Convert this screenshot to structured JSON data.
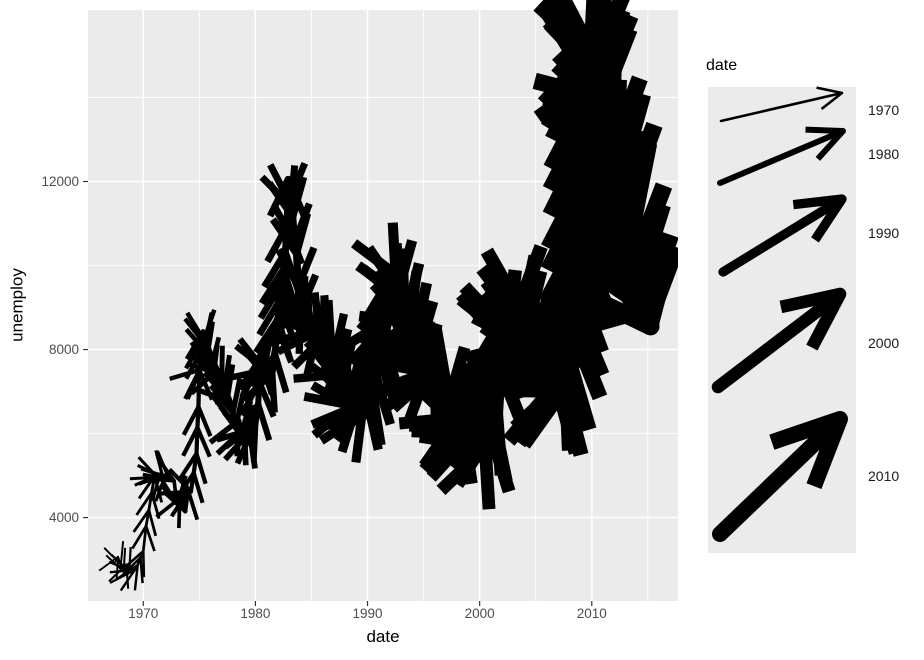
{
  "chart_data": {
    "type": "line",
    "style": "arrow-path: each segment of the line is drawn with an open V arrowhead; stroke width and arrowhead length increase with date",
    "title": "",
    "xlabel": "date",
    "ylabel": "unemploy",
    "x_ticks": [
      1970,
      1980,
      1990,
      2000,
      2010
    ],
    "x_minor_ticks": [
      1975,
      1985,
      1995,
      2005,
      2015
    ],
    "y_ticks": [
      4000,
      8000,
      12000
    ],
    "y_minor_ticks": [
      6000,
      10000,
      14000
    ],
    "xlim": [
      1965.07,
      2017.69
    ],
    "ylim": [
      2014,
      16083
    ],
    "grid": "white major and minor gridlines on grey panel",
    "legend_position": "right",
    "series": [
      {
        "name": "unemploy",
        "points": [
          [
            1967.5,
            2944
          ],
          [
            1967.75,
            3066
          ],
          [
            1968,
            2878
          ],
          [
            1968.25,
            2709
          ],
          [
            1968.5,
            2883
          ],
          [
            1968.75,
            2715
          ],
          [
            1969,
            2718
          ],
          [
            1969.25,
            2758
          ],
          [
            1969.5,
            2868
          ],
          [
            1969.75,
            3049
          ],
          [
            1970,
            3201
          ],
          [
            1970.25,
            3797
          ],
          [
            1970.5,
            4175
          ],
          [
            1970.75,
            4591
          ],
          [
            1971,
            4986
          ],
          [
            1971.25,
            4959
          ],
          [
            1971.5,
            5035
          ],
          [
            1971.75,
            4954
          ],
          [
            1972,
            5019
          ],
          [
            1972.25,
            4959
          ],
          [
            1972.5,
            4913
          ],
          [
            1972.75,
            4875
          ],
          [
            1973,
            4326
          ],
          [
            1973.25,
            4459
          ],
          [
            1973.5,
            4305
          ],
          [
            1973.75,
            4144
          ],
          [
            1974,
            4644
          ],
          [
            1974.25,
            4618
          ],
          [
            1974.5,
            5063
          ],
          [
            1974.75,
            5523
          ],
          [
            1974.83,
            6140
          ],
          [
            1974.92,
            6636
          ],
          [
            1975,
            7501
          ],
          [
            1975.08,
            7520
          ],
          [
            1975.17,
            7978
          ],
          [
            1975.25,
            8210
          ],
          [
            1975.33,
            8433
          ],
          [
            1975.42,
            8220
          ],
          [
            1975.5,
            8127
          ],
          [
            1975.75,
            7897
          ],
          [
            1976,
            7534
          ],
          [
            1976.25,
            7330
          ],
          [
            1976.5,
            7490
          ],
          [
            1976.75,
            7430
          ],
          [
            1977,
            7280
          ],
          [
            1977.25,
            7059
          ],
          [
            1977.5,
            6829
          ],
          [
            1977.75,
            6763
          ],
          [
            1978,
            6489
          ],
          [
            1978.25,
            6180
          ],
          [
            1978.5,
            6309
          ],
          [
            1978.75,
            5947
          ],
          [
            1979,
            6109
          ],
          [
            1979.25,
            5819
          ],
          [
            1979.5,
            6039
          ],
          [
            1979.75,
            6097
          ],
          [
            1980,
            6225
          ],
          [
            1980.25,
            6703
          ],
          [
            1980.33,
            7236
          ],
          [
            1980.42,
            7672
          ],
          [
            1980.5,
            7811
          ],
          [
            1980.75,
            7535
          ],
          [
            1981,
            7520
          ],
          [
            1981.25,
            7265
          ],
          [
            1981.5,
            7435
          ],
          [
            1981.75,
            7881
          ],
          [
            1981.92,
            8576
          ],
          [
            1982,
            8725
          ],
          [
            1982.17,
            9172
          ],
          [
            1982.33,
            9565
          ],
          [
            1982.5,
            9911
          ],
          [
            1982.67,
            10318
          ],
          [
            1982.83,
            10944
          ],
          [
            1982.92,
            12051
          ],
          [
            1983,
            11534
          ],
          [
            1983.17,
            11408
          ],
          [
            1983.33,
            11154
          ],
          [
            1983.5,
            10548
          ],
          [
            1983.67,
            10282
          ],
          [
            1983.83,
            9499
          ],
          [
            1983.92,
            8856
          ],
          [
            1984,
            8899
          ],
          [
            1984.25,
            8740
          ],
          [
            1984.5,
            8572
          ],
          [
            1984.75,
            8435
          ],
          [
            1985,
            8423
          ],
          [
            1985.25,
            8339
          ],
          [
            1985.5,
            8425
          ],
          [
            1985.75,
            8317
          ],
          [
            1986,
            8158
          ],
          [
            1986.25,
            8341
          ],
          [
            1986.5,
            8226
          ],
          [
            1986.75,
            8102
          ],
          [
            1987,
            7795
          ],
          [
            1987.25,
            7430
          ],
          [
            1987.5,
            7406
          ],
          [
            1987.75,
            7113
          ],
          [
            1988,
            6983
          ],
          [
            1988.25,
            6658
          ],
          [
            1988.5,
            6675
          ],
          [
            1988.75,
            6578
          ],
          [
            1989,
            6651
          ],
          [
            1989.25,
            6351
          ],
          [
            1989.5,
            6457
          ],
          [
            1989.75,
            6446
          ],
          [
            1990,
            6752
          ],
          [
            1990.25,
            6656
          ],
          [
            1990.5,
            6890
          ],
          [
            1990.75,
            7355
          ],
          [
            1991,
            7897
          ],
          [
            1991.25,
            8360
          ],
          [
            1991.5,
            8589
          ],
          [
            1991.75,
            8688
          ],
          [
            1992,
            9158
          ],
          [
            1992.25,
            9425
          ],
          [
            1992.42,
            9829
          ],
          [
            1992.5,
            9789
          ],
          [
            1992.75,
            9398
          ],
          [
            1993,
            9283
          ],
          [
            1993.25,
            9149
          ],
          [
            1993.5,
            8823
          ],
          [
            1993.75,
            8609
          ],
          [
            1994,
            8630
          ],
          [
            1994.25,
            8331
          ],
          [
            1994.5,
            7907
          ],
          [
            1994.75,
            7379
          ],
          [
            1995,
            7375
          ],
          [
            1995.25,
            7442
          ],
          [
            1995.5,
            7459
          ],
          [
            1995.75,
            7334
          ],
          [
            1996,
            7491
          ],
          [
            1996.25,
            7404
          ],
          [
            1996.5,
            7322
          ],
          [
            1996.75,
            7253
          ],
          [
            1997,
            7158
          ],
          [
            1997.25,
            6738
          ],
          [
            1997.5,
            6655
          ],
          [
            1997.75,
            6329
          ],
          [
            1998,
            6368
          ],
          [
            1998.25,
            5962
          ],
          [
            1998.5,
            6190
          ],
          [
            1998.75,
            6021
          ],
          [
            1999,
            5976
          ],
          [
            1999.25,
            6004
          ],
          [
            1999.5,
            5953
          ],
          [
            1999.75,
            5753
          ],
          [
            2000,
            5708
          ],
          [
            2000.25,
            5481
          ],
          [
            2000.5,
            5651
          ],
          [
            2000.75,
            5534
          ],
          [
            2001,
            6023
          ],
          [
            2001.25,
            6306
          ],
          [
            2001.5,
            6484
          ],
          [
            2001.75,
            7613
          ],
          [
            2001.92,
            8258
          ],
          [
            2002,
            8182
          ],
          [
            2002.25,
            8599
          ],
          [
            2002.5,
            8395
          ],
          [
            2002.75,
            8260
          ],
          [
            2003,
            8520
          ],
          [
            2003.25,
            8823
          ],
          [
            2003.42,
            9266
          ],
          [
            2003.5,
            9011
          ],
          [
            2003.75,
            8717
          ],
          [
            2004,
            8370
          ],
          [
            2004.25,
            8170
          ],
          [
            2004.5,
            8157
          ],
          [
            2004.75,
            8071
          ],
          [
            2005,
            7784
          ],
          [
            2005.25,
            7672
          ],
          [
            2005.5,
            7406
          ],
          [
            2005.75,
            7328
          ],
          [
            2006,
            7064
          ],
          [
            2006.25,
            7032
          ],
          [
            2006.5,
            7063
          ],
          [
            2006.75,
            6727
          ],
          [
            2007,
            7116
          ],
          [
            2007.25,
            6725
          ],
          [
            2007.5,
            7085
          ],
          [
            2007.75,
            7246
          ],
          [
            2008,
            7685
          ],
          [
            2008.25,
            7631
          ],
          [
            2008.42,
            8413
          ],
          [
            2008.5,
            8935
          ],
          [
            2008.67,
            9509
          ],
          [
            2008.75,
            10172
          ],
          [
            2008.83,
            10617
          ],
          [
            2008.92,
            11400
          ],
          [
            2009,
            11919
          ],
          [
            2009.08,
            12714
          ],
          [
            2009.17,
            13310
          ],
          [
            2009.25,
            13816
          ],
          [
            2009.33,
            14518
          ],
          [
            2009.42,
            14721
          ],
          [
            2009.5,
            14534
          ],
          [
            2009.58,
            14993
          ],
          [
            2009.67,
            15159
          ],
          [
            2009.75,
            15352
          ],
          [
            2009.83,
            15219
          ],
          [
            2009.92,
            15098
          ],
          [
            2010,
            15046
          ],
          [
            2010.08,
            15113
          ],
          [
            2010.17,
            15202
          ],
          [
            2010.25,
            15325
          ],
          [
            2010.33,
            14849
          ],
          [
            2010.42,
            14474
          ],
          [
            2010.5,
            14512
          ],
          [
            2010.58,
            14648
          ],
          [
            2010.67,
            14579
          ],
          [
            2010.75,
            14516
          ],
          [
            2010.83,
            15081
          ],
          [
            2010.92,
            14348
          ],
          [
            2011,
            14013
          ],
          [
            2011.25,
            13958
          ],
          [
            2011.5,
            13756
          ],
          [
            2011.75,
            13594
          ],
          [
            2012,
            12797
          ],
          [
            2012.25,
            12646
          ],
          [
            2012.5,
            12756
          ],
          [
            2012.75,
            12355
          ],
          [
            2013,
            12471
          ],
          [
            2013.25,
            11659
          ],
          [
            2013.5,
            11408
          ],
          [
            2013.75,
            11136
          ],
          [
            2014,
            10202
          ],
          [
            2014.25,
            9702
          ],
          [
            2014.5,
            9637
          ],
          [
            2014.75,
            8990
          ],
          [
            2015,
            8979
          ],
          [
            2015.08,
            8705
          ],
          [
            2015.17,
            8575
          ],
          [
            2015.25,
            8549
          ]
        ]
      }
    ]
  },
  "legend": {
    "title": "date",
    "entries": [
      {
        "label": "1970",
        "year": 1970
      },
      {
        "label": "1980",
        "year": 1980
      },
      {
        "label": "1990",
        "year": 1990
      },
      {
        "label": "2000",
        "year": 2000
      },
      {
        "label": "2010",
        "year": 2010
      }
    ]
  },
  "colors": {
    "figure_bg": "#ffffff",
    "panel_bg": "#ebebeb",
    "grid": "#ffffff",
    "series": "#000000",
    "axis_text": "#4d4d4d",
    "tick_mark": "#333333",
    "title_text": "#000000"
  }
}
